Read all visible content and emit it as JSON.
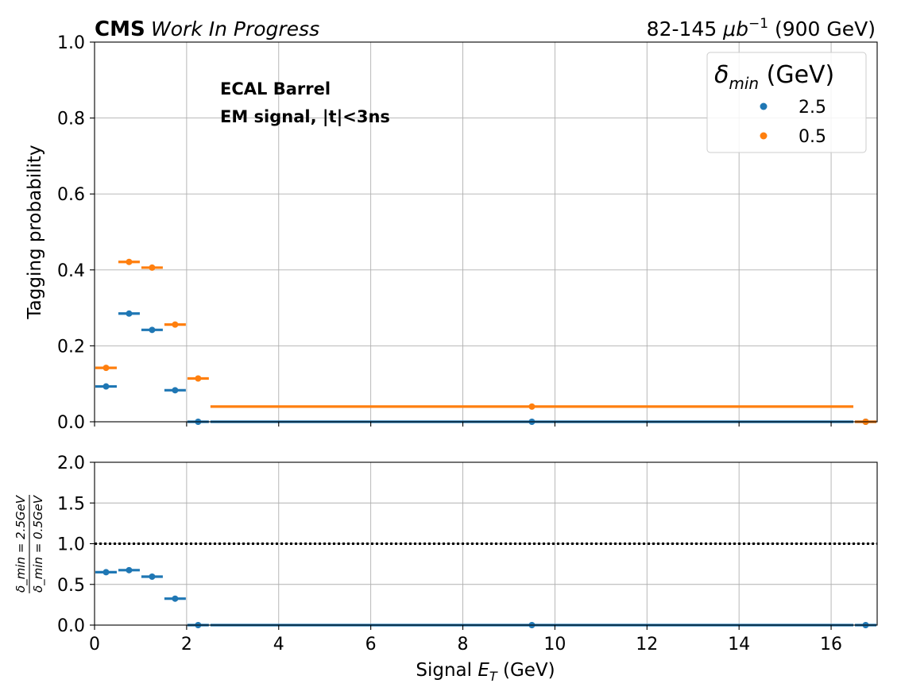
{
  "header": {
    "experiment": "CMS",
    "status": "Work In Progress",
    "lumi_prefix": "82-145 ",
    "lumi_unit": "μb",
    "lumi_exp": "−1",
    "lumi_suffix": " (900 GeV)"
  },
  "annotation": {
    "line1": "ECAL Barrel",
    "line2": "EM signal, |t|<3ns"
  },
  "colors": {
    "blue": "#1f77b4",
    "orange": "#ff7f0e",
    "grid": "#b0b0b0"
  },
  "chart_data": [
    {
      "type": "scatter",
      "panel": "top",
      "xlabel": "Signal E_T (GeV)",
      "ylabel": "Tagging probability",
      "xlim": [
        0,
        17
      ],
      "ylim": [
        0,
        1.0
      ],
      "xticks": [
        "0",
        "2",
        "4",
        "6",
        "8",
        "10",
        "12",
        "14",
        "16"
      ],
      "yticks": [
        "0.0",
        "0.2",
        "0.4",
        "0.6",
        "0.8",
        "1.0"
      ],
      "grid": true,
      "legend": {
        "title_symbol": "δ",
        "title_sub": "min",
        "title_unit": " (GeV)",
        "placement": "top-right"
      },
      "x_bins": [
        [
          0,
          0.5
        ],
        [
          0.5,
          1.0
        ],
        [
          1.0,
          1.5
        ],
        [
          1.5,
          2.0
        ],
        [
          2.0,
          2.5
        ],
        [
          2.5,
          16.5
        ],
        [
          16.5,
          17.0
        ]
      ],
      "x": [
        0.25,
        0.75,
        1.25,
        1.75,
        2.25,
        9.5,
        16.75
      ],
      "series": [
        {
          "name": "2.5",
          "color": "#1f77b4",
          "values": [
            0.093,
            0.285,
            0.242,
            0.083,
            0.0,
            0.0,
            0.0
          ]
        },
        {
          "name": "0.5",
          "color": "#ff7f0e",
          "values": [
            0.142,
            0.421,
            0.406,
            0.256,
            0.114,
            0.04,
            0.0
          ]
        }
      ]
    },
    {
      "type": "scatter",
      "panel": "ratio",
      "xlabel": "Signal E_T (GeV)",
      "ylabel_num": "δ_min = 2.5GeV",
      "ylabel_den": "δ_min = 0.5GeV",
      "xlim": [
        0,
        17
      ],
      "ylim": [
        0,
        2.0
      ],
      "xticks": [
        "0",
        "2",
        "4",
        "6",
        "8",
        "10",
        "12",
        "14",
        "16"
      ],
      "yticks": [
        "0.0",
        "0.5",
        "1.0",
        "1.5",
        "2.0"
      ],
      "grid": true,
      "reference_line": 1.0,
      "x_bins": [
        [
          0,
          0.5
        ],
        [
          0.5,
          1.0
        ],
        [
          1.0,
          1.5
        ],
        [
          1.5,
          2.0
        ],
        [
          2.0,
          2.5
        ],
        [
          2.5,
          16.5
        ],
        [
          16.5,
          17.0
        ]
      ],
      "x": [
        0.25,
        0.75,
        1.25,
        1.75,
        2.25,
        9.5,
        16.75
      ],
      "series": [
        {
          "color": "#1f77b4",
          "values": [
            0.65,
            0.675,
            0.595,
            0.325,
            0.0,
            0.0,
            0.0
          ]
        }
      ]
    }
  ]
}
